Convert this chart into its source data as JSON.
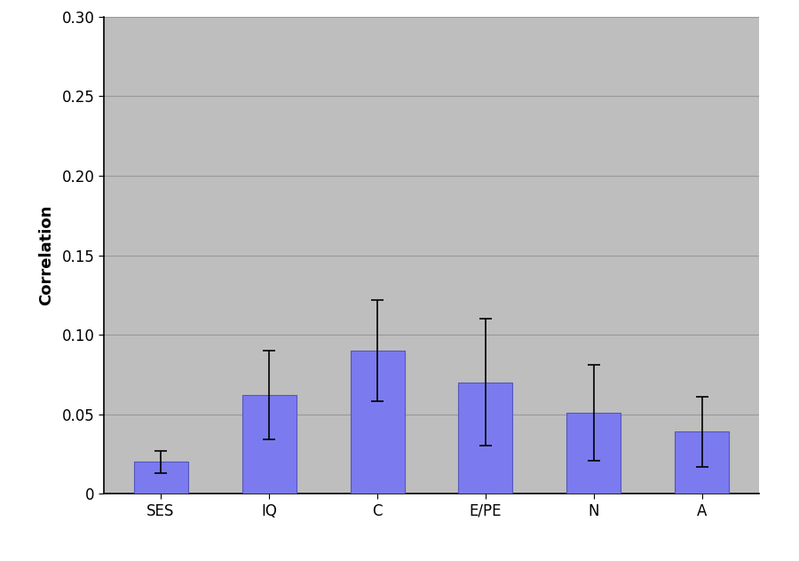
{
  "categories": [
    "SES",
    "IQ",
    "C",
    "E/PE",
    "N",
    "A"
  ],
  "values": [
    0.02,
    0.062,
    0.09,
    0.07,
    0.051,
    0.039
  ],
  "errors": [
    0.007,
    0.028,
    0.032,
    0.04,
    0.03,
    0.022
  ],
  "bar_color": "#7b7bef",
  "bar_edgecolor": "#5555bb",
  "ylabel": "Correlation",
  "ylim": [
    0,
    0.3
  ],
  "yticks": [
    0,
    0.05,
    0.1,
    0.15,
    0.2,
    0.25,
    0.3
  ],
  "ytick_labels": [
    "0",
    "0.05",
    "0.10",
    "0.15",
    "0.20",
    "0.25",
    "0.30"
  ],
  "plot_bg_color": "#bebebe",
  "grid_color": "#999999",
  "ylabel_fontsize": 13,
  "tick_fontsize": 12,
  "bar_width": 0.5
}
